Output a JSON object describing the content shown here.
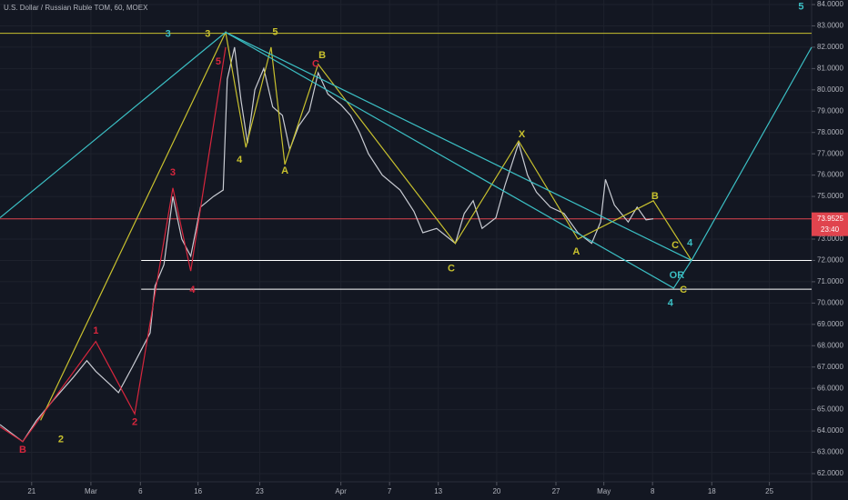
{
  "chart_data": {
    "type": "line",
    "title": "U.S. Dollar / Russian Ruble TOM, 60, MOEX",
    "xlim": [
      0,
      100
    ],
    "ylim": [
      62,
      84
    ],
    "xticks": [
      {
        "value": 3.9,
        "label": "21"
      },
      {
        "value": 11.2,
        "label": "Mar"
      },
      {
        "value": 17.3,
        "label": "6"
      },
      {
        "value": 24.4,
        "label": "16"
      },
      {
        "value": 32.0,
        "label": "23"
      },
      {
        "value": 42.0,
        "label": "Apr"
      },
      {
        "value": 48.0,
        "label": "7"
      },
      {
        "value": 54.0,
        "label": "13"
      },
      {
        "value": 61.2,
        "label": "20"
      },
      {
        "value": 68.5,
        "label": "27"
      },
      {
        "value": 74.4,
        "label": "May"
      },
      {
        "value": 80.4,
        "label": "8"
      },
      {
        "value": 87.7,
        "label": "18"
      },
      {
        "value": 94.8,
        "label": "25"
      }
    ],
    "yticks": [
      {
        "value": 62,
        "label": "62.0000"
      },
      {
        "value": 63,
        "label": "63.0000"
      },
      {
        "value": 64,
        "label": "64.0000"
      },
      {
        "value": 65,
        "label": "65.0000"
      },
      {
        "value": 66,
        "label": "66.0000"
      },
      {
        "value": 67,
        "label": "67.0000"
      },
      {
        "value": 68,
        "label": "68.0000"
      },
      {
        "value": 69,
        "label": "69.0000"
      },
      {
        "value": 70,
        "label": "70.0000"
      },
      {
        "value": 71,
        "label": "71.0000"
      },
      {
        "value": 72,
        "label": "72.0000"
      },
      {
        "value": 73,
        "label": "73.0000"
      },
      {
        "value": 75,
        "label": "75.0000"
      },
      {
        "value": 76,
        "label": "76.0000"
      },
      {
        "value": 77,
        "label": "77.0000"
      },
      {
        "value": 78,
        "label": "78.0000"
      },
      {
        "value": 79,
        "label": "79.0000"
      },
      {
        "value": 80,
        "label": "80.0000"
      },
      {
        "value": 81,
        "label": "81.0000"
      },
      {
        "value": 82,
        "label": "82.0000"
      },
      {
        "value": 83,
        "label": "83.0000"
      },
      {
        "value": 84,
        "label": "84.0000"
      }
    ],
    "grid": true,
    "series": [
      {
        "color": "#c9ccd3",
        "x": [
          0,
          2.8,
          4.5,
          6.7,
          9.0,
          10.7,
          11.8,
          13.5,
          14.6,
          16.3,
          17.4,
          18.5,
          19.1,
          20.2,
          21.3,
          22.4,
          23.5,
          24.7,
          26.3,
          27.5,
          28.0,
          28.9,
          29.7,
          30.5,
          31.4,
          32.5,
          33.6,
          34.8,
          35.7,
          36.8,
          38.1,
          39.2,
          40.4,
          42.0,
          43.2,
          44.3,
          45.4,
          47.1,
          49.3,
          51.0,
          52.1,
          53.8,
          56.1,
          57.2,
          58.3,
          59.4,
          61.1,
          62.2,
          63.9,
          65.0,
          66.1,
          67.8,
          69.5,
          71.2,
          72.9,
          74.0,
          74.6,
          75.7,
          77.4,
          78.5,
          79.6,
          80.5
        ],
        "values": [
          64.3,
          63.5,
          64.5,
          65.5,
          66.5,
          67.3,
          66.8,
          66.2,
          65.8,
          67.0,
          67.8,
          68.6,
          70.8,
          71.8,
          75.0,
          73.0,
          72.2,
          74.5,
          75.0,
          75.3,
          80.5,
          82.0,
          79.5,
          77.5,
          80.0,
          81.0,
          79.2,
          78.8,
          77.2,
          78.3,
          79.0,
          80.8,
          79.8,
          79.3,
          78.8,
          78.0,
          77.0,
          76.0,
          75.3,
          74.3,
          73.3,
          73.5,
          72.8,
          74.2,
          74.8,
          73.5,
          74.0,
          75.5,
          77.5,
          76.0,
          75.2,
          74.5,
          74.2,
          73.3,
          72.8,
          73.8,
          75.8,
          74.6,
          73.8,
          74.5,
          73.9,
          73.95
        ]
      }
    ],
    "overlays": [
      {
        "color": "#c8c12e",
        "x": [
          5.0,
          27.8,
          30.3,
          33.4,
          35.1,
          39.2,
          56.1,
          63.9,
          71.2,
          80.5,
          85.2
        ],
        "values": [
          64.5,
          82.7,
          77.3,
          82.0,
          76.5,
          81.2,
          72.8,
          77.6,
          73.0,
          74.8,
          72.0
        ]
      },
      {
        "color": "#3bbfc4",
        "x": [
          0,
          27.8,
          85.2,
          100
        ],
        "values": [
          74.0,
          82.7,
          72.0,
          82.0
        ]
      },
      {
        "color": "#3bbfc4",
        "x": [
          27.8,
          83.0,
          85.2
        ],
        "values": [
          82.7,
          70.7,
          72.0
        ]
      },
      {
        "color": "#d7263d",
        "x": [
          0,
          2.8,
          11.8,
          16.6,
          21.3,
          23.5,
          27.8
        ],
        "values": [
          64.2,
          63.5,
          68.2,
          64.8,
          75.4,
          71.5,
          82.0
        ]
      }
    ],
    "levels": [
      {
        "color": "#c8c12e",
        "value": 82.65,
        "from": 0
      },
      {
        "color": "#e0444e",
        "value": 73.95,
        "from": 0
      },
      {
        "color": "#ffffff",
        "value": 72.0,
        "from": 17.4
      },
      {
        "color": "#ffffff",
        "value": 70.65,
        "from": 17.4
      }
    ],
    "price_label": "73.9525",
    "price_value": 73.9525,
    "countdown": "23:40",
    "annotations": [
      {
        "text": "3",
        "color": "#3bbfc4",
        "x": 20.7,
        "y": 82.6
      },
      {
        "text": "3",
        "color": "#c8c12e",
        "x": 25.6,
        "y": 82.6
      },
      {
        "text": "5",
        "color": "#c8c12e",
        "x": 33.9,
        "y": 82.7
      },
      {
        "text": "5",
        "color": "#d7263d",
        "x": 26.9,
        "y": 81.3
      },
      {
        "text": "B",
        "color": "#c8c12e",
        "x": 39.7,
        "y": 81.6
      },
      {
        "text": "C",
        "color": "#d7263d",
        "x": 38.9,
        "y": 81.2
      },
      {
        "text": "4",
        "color": "#c8c12e",
        "x": 29.5,
        "y": 76.7
      },
      {
        "text": "A",
        "color": "#c8c12e",
        "x": 35.1,
        "y": 76.2
      },
      {
        "text": "X",
        "color": "#c8c12e",
        "x": 64.3,
        "y": 77.9
      },
      {
        "text": "C",
        "color": "#c8c12e",
        "x": 55.6,
        "y": 71.6
      },
      {
        "text": "A",
        "color": "#c8c12e",
        "x": 71.0,
        "y": 72.4
      },
      {
        "text": "B",
        "color": "#c8c12e",
        "x": 80.7,
        "y": 75.0
      },
      {
        "text": "C",
        "color": "#c8c12e",
        "x": 83.2,
        "y": 72.7
      },
      {
        "text": "4",
        "color": "#3bbfc4",
        "x": 85.0,
        "y": 72.8
      },
      {
        "text": "OR",
        "color": "#3bbfc4",
        "x": 83.4,
        "y": 71.3
      },
      {
        "text": "C",
        "color": "#c8c12e",
        "x": 84.2,
        "y": 70.6
      },
      {
        "text": "4",
        "color": "#3bbfc4",
        "x": 82.6,
        "y": 70.0
      },
      {
        "text": "5",
        "color": "#3bbfc4",
        "x": 98.7,
        "y": 83.9
      },
      {
        "text": "3",
        "color": "#d7263d",
        "x": 21.3,
        "y": 76.1
      },
      {
        "text": "4",
        "color": "#d7263d",
        "x": 23.7,
        "y": 70.6
      },
      {
        "text": "1",
        "color": "#d7263d",
        "x": 11.8,
        "y": 68.7
      },
      {
        "text": "2",
        "color": "#d7263d",
        "x": 16.6,
        "y": 64.4
      },
      {
        "text": "2",
        "color": "#c8c12e",
        "x": 7.5,
        "y": 63.6
      },
      {
        "text": "B",
        "color": "#d7263d",
        "x": 2.8,
        "y": 63.1
      }
    ]
  }
}
